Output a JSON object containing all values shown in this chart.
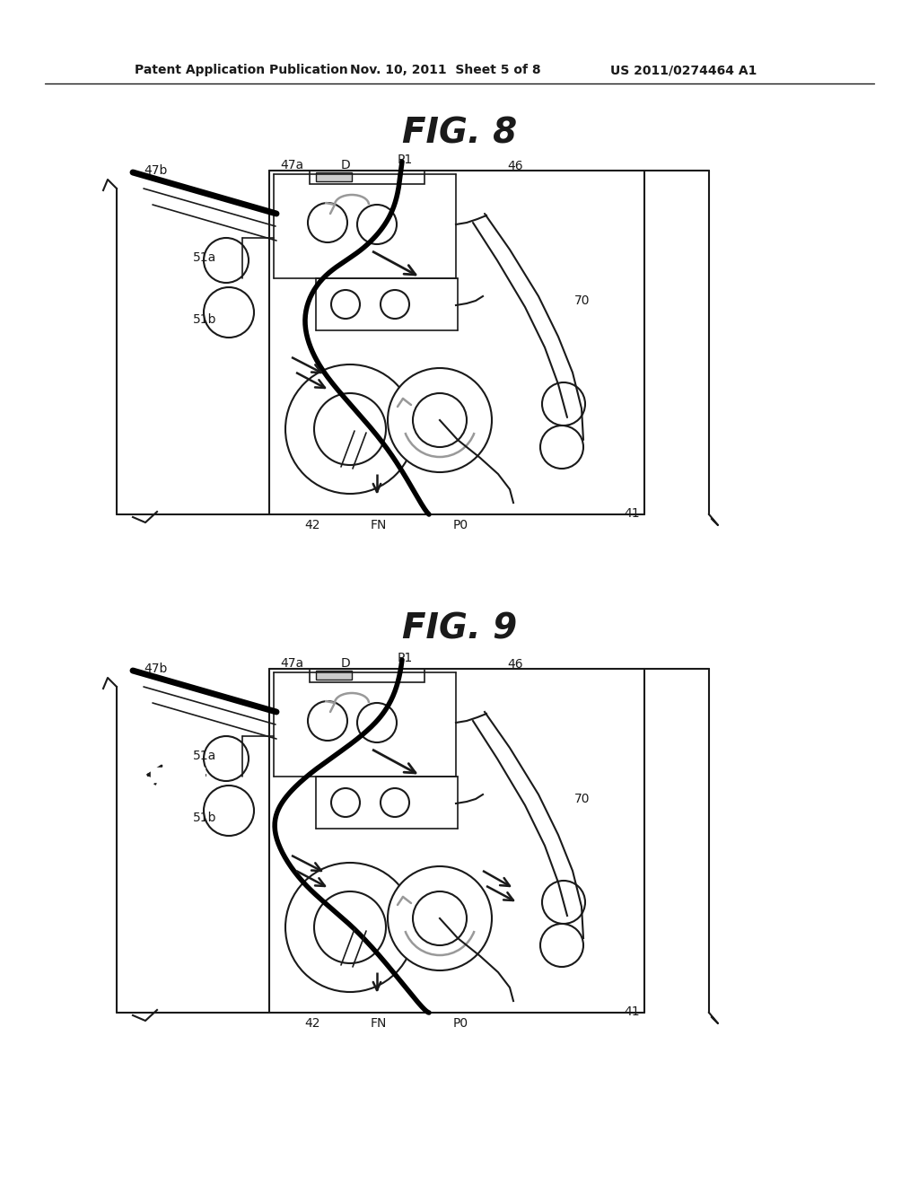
{
  "bg_color": "#ffffff",
  "header_text": "Patent Application Publication",
  "header_date": "Nov. 10, 2011  Sheet 5 of 8",
  "header_patent": "US 2011/0274464 A1",
  "fig8_title": "FIG. 8",
  "fig9_title": "FIG. 9",
  "line_color": "#1a1a1a",
  "gray_color": "#999999"
}
